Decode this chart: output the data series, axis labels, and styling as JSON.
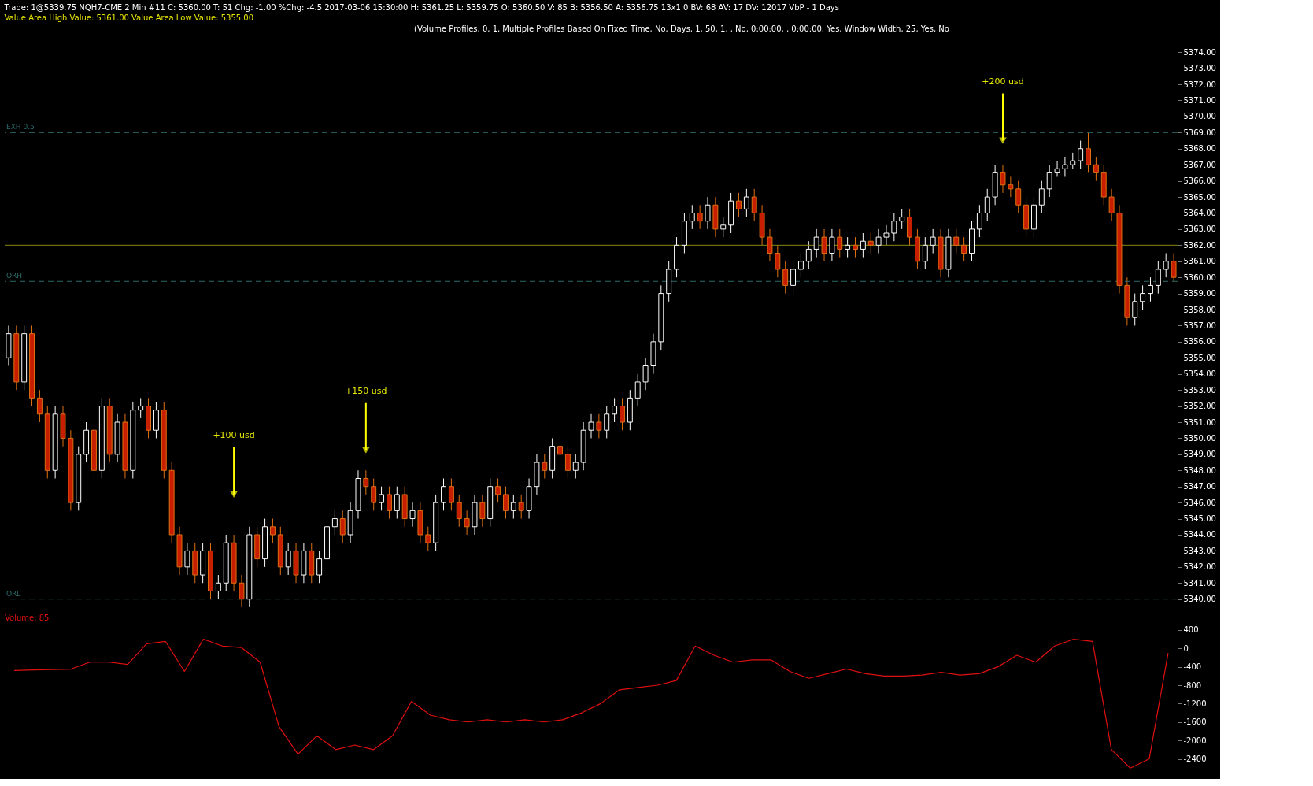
{
  "chart_data": [
    {
      "type": "candlestick",
      "title": "Trade: 1@5339.75  NQH7-CME  2 Min  #11  C: 5360.00  T: 51  Chg: -1.00  %Chg: -4.5  2017-03-06 15:30:00  H: 5361.25  L: 5359.75  O: 5360.50  V: 85  B: 5356.50  A: 5356.75  13x1 0  BV: 68  AV: 17  DV: 12017  VbP - 1 Days",
      "subtitle": "Value Area High Value: 5361.00  Value Area Low Value: 5355.00",
      "annotations": [
        "(Volume Profiles, 0, 1, Multiple Profiles Based On Fixed Time, No, Days, 1, 50, 1, , No, 0:00:00, , 0:00:00, Yes, Window Width, 25, Yes, No",
        {
          "text": "+100 usd",
          "y": 5346.5
        },
        {
          "text": "+150 usd",
          "y": 5349.25
        },
        {
          "text": "+200 usd",
          "y": 5368.5
        }
      ],
      "categories": [
        null,
        null,
        null,
        null,
        null,
        null,
        null,
        null,
        null,
        null,
        null,
        null,
        null,
        null,
        null,
        null,
        null,
        null,
        null,
        null,
        null,
        null,
        null,
        null,
        null,
        null,
        null,
        null,
        null,
        null,
        null,
        null,
        null,
        null,
        null,
        null,
        null,
        null,
        null,
        null,
        null,
        null,
        null,
        null,
        null,
        null,
        null,
        null,
        null,
        null,
        null,
        null,
        null,
        null,
        null,
        null,
        null,
        null,
        null,
        null,
        null,
        null,
        null,
        null,
        null,
        null,
        null,
        null,
        null,
        null,
        null,
        null,
        null,
        null,
        null,
        null,
        null,
        null,
        null,
        null,
        null,
        null,
        null,
        null,
        null,
        null,
        null,
        null,
        null,
        null,
        null,
        null,
        null,
        null,
        null,
        null,
        null,
        null,
        null,
        null,
        null,
        null,
        null,
        null,
        null,
        null,
        null,
        null,
        null,
        null,
        null,
        null,
        null,
        null,
        null,
        null,
        null,
        null,
        null,
        null,
        null,
        null,
        null,
        null,
        null,
        null,
        null,
        null,
        null,
        null,
        null,
        null,
        null,
        null,
        null,
        null,
        null,
        null,
        null,
        null,
        null,
        null,
        null,
        null,
        null,
        null,
        null,
        null,
        null,
        null,
        null
      ],
      "ohlc": [
        [
          5355,
          5357,
          5354.5,
          5356.5
        ],
        [
          5356.5,
          5357,
          5353,
          5353.5
        ],
        [
          5353.5,
          5357,
          5353,
          5356.5
        ],
        [
          5356.5,
          5357,
          5352,
          5352.5
        ],
        [
          5352.5,
          5353,
          5351,
          5351.5
        ],
        [
          5351.5,
          5352,
          5347.5,
          5348
        ],
        [
          5348,
          5352,
          5347.5,
          5351.5
        ],
        [
          5351.5,
          5352,
          5349.5,
          5350
        ],
        [
          5350,
          5350.5,
          5345.5,
          5346
        ],
        [
          5346,
          5349.5,
          5345.5,
          5349
        ],
        [
          5349,
          5351,
          5348.5,
          5350.5
        ],
        [
          5350.5,
          5351,
          5347.5,
          5348
        ],
        [
          5348,
          5352.5,
          5347.5,
          5352
        ],
        [
          5352,
          5352.5,
          5348.5,
          5349
        ],
        [
          5349,
          5351.5,
          5348.5,
          5351
        ],
        [
          5351,
          5351.5,
          5347.5,
          5348
        ],
        [
          5348,
          5352.25,
          5347.5,
          5351.75
        ],
        [
          5351.75,
          5352.5,
          5351.25,
          5352
        ],
        [
          5352,
          5352.5,
          5350,
          5350.5
        ],
        [
          5350.5,
          5352.25,
          5350,
          5351.75
        ],
        [
          5351.75,
          5352.25,
          5347.5,
          5348
        ],
        [
          5348,
          5348.5,
          5343.5,
          5344
        ],
        [
          5344,
          5344.5,
          5341.5,
          5342
        ],
        [
          5342,
          5343.5,
          5341.5,
          5343
        ],
        [
          5343,
          5343.5,
          5341,
          5341.5
        ],
        [
          5341.5,
          5343.5,
          5341,
          5343
        ],
        [
          5343,
          5343.5,
          5340,
          5340.5
        ],
        [
          5340.5,
          5341.5,
          5340,
          5341
        ],
        [
          5341,
          5344,
          5340.5,
          5343.5
        ],
        [
          5343.5,
          5344,
          5340.5,
          5341
        ],
        [
          5341,
          5341.5,
          5339.5,
          5340
        ],
        [
          5340,
          5344.5,
          5339.5,
          5344
        ],
        [
          5344,
          5344.5,
          5342,
          5342.5
        ],
        [
          5342.5,
          5345,
          5342,
          5344.5
        ],
        [
          5344.5,
          5345,
          5343.5,
          5344
        ],
        [
          5344,
          5344.5,
          5341.5,
          5342
        ],
        [
          5342,
          5343.5,
          5341.5,
          5343
        ],
        [
          5343,
          5343.5,
          5341,
          5341.5
        ],
        [
          5341.5,
          5343.5,
          5341,
          5343
        ],
        [
          5343,
          5343.5,
          5341,
          5341.5
        ],
        [
          5341.5,
          5343,
          5341,
          5342.5
        ],
        [
          5342.5,
          5345,
          5342,
          5344.5
        ],
        [
          5344.5,
          5345.5,
          5344,
          5345
        ],
        [
          5345,
          5345.5,
          5343.5,
          5344
        ],
        [
          5344,
          5346,
          5343.5,
          5345.5
        ],
        [
          5345.5,
          5348,
          5345,
          5347.5
        ],
        [
          5347.5,
          5348,
          5346.5,
          5347
        ],
        [
          5347,
          5347.5,
          5345.5,
          5346
        ],
        [
          5346,
          5347,
          5345.5,
          5346.5
        ],
        [
          5346.5,
          5347,
          5345,
          5345.5
        ],
        [
          5345.5,
          5347,
          5345,
          5346.5
        ],
        [
          5346.5,
          5347,
          5344.5,
          5345
        ],
        [
          5345,
          5346,
          5344.5,
          5345.5
        ],
        [
          5345.5,
          5346,
          5343.5,
          5344
        ],
        [
          5344,
          5344.5,
          5343,
          5343.5
        ],
        [
          5343.5,
          5346.5,
          5343,
          5346
        ],
        [
          5346,
          5347.5,
          5345.5,
          5347
        ],
        [
          5347,
          5347.5,
          5345.5,
          5346
        ],
        [
          5346,
          5346.5,
          5344.5,
          5345
        ],
        [
          5345,
          5345.5,
          5344,
          5344.5
        ],
        [
          5344.5,
          5346.5,
          5344,
          5346
        ],
        [
          5346,
          5346.5,
          5344.5,
          5345
        ],
        [
          5345,
          5347.5,
          5344.5,
          5347
        ],
        [
          5347,
          5347.5,
          5346,
          5346.5
        ],
        [
          5346.5,
          5347,
          5345,
          5345.5
        ],
        [
          5345.5,
          5346.5,
          5345,
          5346
        ],
        [
          5346,
          5346.5,
          5345,
          5345.5
        ],
        [
          5345.5,
          5347.5,
          5345,
          5347
        ],
        [
          5347,
          5349,
          5346.5,
          5348.5
        ],
        [
          5348.5,
          5349,
          5347.5,
          5348
        ],
        [
          5348,
          5350,
          5347.5,
          5349.5
        ],
        [
          5349.5,
          5350,
          5348.5,
          5349
        ],
        [
          5349,
          5349.5,
          5347.5,
          5348
        ],
        [
          5348,
          5349,
          5347.5,
          5348.5
        ],
        [
          5348.5,
          5351,
          5348,
          5350.5
        ],
        [
          5350.5,
          5351.5,
          5350,
          5351
        ],
        [
          5351,
          5351.5,
          5350,
          5350.5
        ],
        [
          5350.5,
          5352,
          5350,
          5351.5
        ],
        [
          5351.5,
          5352.5,
          5351,
          5352
        ],
        [
          5352,
          5352.5,
          5350.5,
          5351
        ],
        [
          5351,
          5353,
          5350.5,
          5352.5
        ],
        [
          5352.5,
          5354,
          5352,
          5353.5
        ],
        [
          5353.5,
          5355,
          5353,
          5354.5
        ],
        [
          5354.5,
          5356.5,
          5354,
          5356
        ],
        [
          5356,
          5359.5,
          5355.5,
          5359
        ],
        [
          5359,
          5361,
          5358.5,
          5360.5
        ],
        [
          5360.5,
          5362.5,
          5360,
          5362
        ],
        [
          5362,
          5364,
          5361.5,
          5363.5
        ],
        [
          5363.5,
          5364.5,
          5363,
          5364
        ],
        [
          5364,
          5364.5,
          5363,
          5363.5
        ],
        [
          5363.5,
          5365,
          5363,
          5364.5
        ],
        [
          5364.5,
          5365,
          5362.5,
          5363
        ],
        [
          5363,
          5363.75,
          5362.5,
          5363.25
        ],
        [
          5363.25,
          5365.25,
          5362.75,
          5364.75
        ],
        [
          5364.75,
          5365.25,
          5363.75,
          5364.25
        ],
        [
          5364.25,
          5365.5,
          5363.75,
          5365
        ],
        [
          5365,
          5365.5,
          5363.5,
          5364
        ],
        [
          5364,
          5364.5,
          5362,
          5362.5
        ],
        [
          5362.5,
          5363,
          5361,
          5361.5
        ],
        [
          5361.5,
          5362,
          5360,
          5360.5
        ],
        [
          5360.5,
          5361,
          5359,
          5359.5
        ],
        [
          5359.5,
          5361,
          5359,
          5360.5
        ],
        [
          5360.5,
          5361.5,
          5360,
          5361
        ],
        [
          5361,
          5362.25,
          5360.5,
          5361.75
        ],
        [
          5361.75,
          5363,
          5361.25,
          5362.5
        ],
        [
          5362.5,
          5363,
          5361,
          5361.5
        ],
        [
          5361.5,
          5363,
          5361,
          5362.5
        ],
        [
          5362.5,
          5363,
          5361.25,
          5361.75
        ],
        [
          5361.75,
          5362.5,
          5361.25,
          5362
        ],
        [
          5362,
          5362.5,
          5361.25,
          5361.75
        ],
        [
          5361.75,
          5362.75,
          5361.25,
          5362.25
        ],
        [
          5362.25,
          5362.75,
          5361.5,
          5362
        ],
        [
          5362,
          5363,
          5361.5,
          5362.5
        ],
        [
          5362.5,
          5363.25,
          5362,
          5362.75
        ],
        [
          5362.75,
          5364,
          5362.25,
          5363.5
        ],
        [
          5363.5,
          5364.25,
          5363,
          5363.75
        ],
        [
          5363.75,
          5364.25,
          5362,
          5362.5
        ],
        [
          5362.5,
          5363,
          5360.5,
          5361
        ],
        [
          5361,
          5362.5,
          5360.5,
          5362
        ],
        [
          5362,
          5363,
          5361.5,
          5362.5
        ],
        [
          5362.5,
          5363,
          5360,
          5360.5
        ],
        [
          5360.5,
          5363,
          5360,
          5362.5
        ],
        [
          5362.5,
          5363,
          5361.5,
          5362
        ],
        [
          5362,
          5362.5,
          5361,
          5361.5
        ],
        [
          5361.5,
          5363.5,
          5361,
          5363
        ],
        [
          5363,
          5364.5,
          5362.5,
          5364
        ],
        [
          5364,
          5365.5,
          5363.5,
          5365
        ],
        [
          5365,
          5367,
          5364.5,
          5366.5
        ],
        [
          5366.5,
          5367,
          5365.25,
          5365.75
        ],
        [
          5365.75,
          5366.25,
          5365,
          5365.5
        ],
        [
          5365.5,
          5366,
          5364,
          5364.5
        ],
        [
          5364.5,
          5365,
          5362.5,
          5363
        ],
        [
          5363,
          5365,
          5362.5,
          5364.5
        ],
        [
          5364.5,
          5366,
          5364,
          5365.5
        ],
        [
          5365.5,
          5367,
          5365,
          5366.5
        ],
        [
          5366.5,
          5367.25,
          5366.25,
          5366.75
        ],
        [
          5366.75,
          5367.5,
          5366.25,
          5367
        ],
        [
          5367,
          5367.75,
          5366.75,
          5367.25
        ],
        [
          5367.25,
          5368.5,
          5366.75,
          5368
        ],
        [
          5368,
          5369,
          5366.5,
          5367
        ],
        [
          5367,
          5367.5,
          5366,
          5366.5
        ],
        [
          5366.5,
          5367,
          5364.5,
          5365
        ],
        [
          5365,
          5365.5,
          5363.5,
          5364
        ],
        [
          5364,
          5364.5,
          5359,
          5359.5
        ],
        [
          5359.5,
          5360,
          5357,
          5357.5
        ],
        [
          5357.5,
          5359,
          5357,
          5358.5
        ],
        [
          5358.5,
          5359.5,
          5358,
          5359
        ],
        [
          5359,
          5360,
          5358.5,
          5359.5
        ],
        [
          5359.5,
          5361,
          5359,
          5360.5
        ],
        [
          5360.5,
          5361.5,
          5360,
          5361
        ],
        [
          5361,
          5361.5,
          5359.75,
          5360
        ]
      ],
      "ylim": [
        5339.25,
        5374.5
      ],
      "yticks": [
        {
          "value": 5340,
          "label": "5340.00"
        },
        {
          "value": 5341,
          "label": "5341.00"
        },
        {
          "value": 5342,
          "label": "5342.00"
        },
        {
          "value": 5343,
          "label": "5343.00"
        },
        {
          "value": 5344,
          "label": "5344.00"
        },
        {
          "value": 5345,
          "label": "5345.00"
        },
        {
          "value": 5346,
          "label": "5346.00"
        },
        {
          "value": 5347,
          "label": "5347.00"
        },
        {
          "value": 5348,
          "label": "5348.00"
        },
        {
          "value": 5349,
          "label": "5349.00"
        },
        {
          "value": 5350,
          "label": "5350.00"
        },
        {
          "value": 5351,
          "label": "5351.00"
        },
        {
          "value": 5352,
          "label": "5352.00"
        },
        {
          "value": 5353,
          "label": "5353.00"
        },
        {
          "value": 5354,
          "label": "5354.00"
        },
        {
          "value": 5355,
          "label": "5355.00"
        },
        {
          "value": 5356,
          "label": "5356.00"
        },
        {
          "value": 5357,
          "label": "5357.00"
        },
        {
          "value": 5358,
          "label": "5358.00"
        },
        {
          "value": 5359,
          "label": "5359.00"
        },
        {
          "value": 5360,
          "label": "5360.00"
        },
        {
          "value": 5361,
          "label": "5361.00"
        },
        {
          "value": 5362,
          "label": "5362.00"
        },
        {
          "value": 5363,
          "label": "5363.00"
        },
        {
          "value": 5364,
          "label": "5364.00"
        },
        {
          "value": 5365,
          "label": "5365.00"
        },
        {
          "value": 5366,
          "label": "5366.00"
        },
        {
          "value": 5367,
          "label": "5367.00"
        },
        {
          "value": 5368,
          "label": "5368.00"
        },
        {
          "value": 5369,
          "label": "5369.00"
        },
        {
          "value": 5370,
          "label": "5370.00"
        },
        {
          "value": 5371,
          "label": "5371.00"
        },
        {
          "value": 5372,
          "label": "5372.00"
        },
        {
          "value": 5373,
          "label": "5373.00"
        },
        {
          "value": 5374,
          "label": "5374.00"
        }
      ],
      "ref_lines": [
        {
          "axis": "y",
          "value": 5369,
          "label": "EXH 0.5",
          "color": "#2e6a6a",
          "line_style": "dashed"
        },
        {
          "axis": "y",
          "value": 5359.75,
          "label": "ORH",
          "color": "#2e6a6a",
          "line_style": "dashed"
        },
        {
          "axis": "y",
          "value": 5340,
          "label": "ORL",
          "color": "#2e6a6a",
          "line_style": "dashed"
        },
        {
          "axis": "y",
          "value": 5362,
          "color": "#8a8a10",
          "line_style": "solid"
        }
      ],
      "tick_labels": "y"
    },
    {
      "type": "line",
      "title": "Volume: 85",
      "categories": [
        null,
        null,
        null,
        null,
        null,
        null,
        null,
        null,
        null,
        null,
        null,
        null,
        null,
        null,
        null,
        null,
        null,
        null,
        null,
        null,
        null,
        null,
        null,
        null,
        null,
        null,
        null,
        null,
        null,
        null,
        null,
        null,
        null,
        null,
        null,
        null,
        null,
        null,
        null,
        null,
        null,
        null,
        null,
        null,
        null,
        null,
        null,
        null,
        null,
        null,
        null,
        null,
        null,
        null,
        null,
        null,
        null,
        null,
        null,
        null,
        null,
        null
      ],
      "series": [
        {
          "color": "#e01010",
          "values": [
            -480,
            -470,
            -460,
            -450,
            -300,
            -300,
            -350,
            100,
            150,
            -500,
            200,
            50,
            20,
            -300,
            -1700,
            -2300,
            -1900,
            -2200,
            -2100,
            -2200,
            -1900,
            -1150,
            -1450,
            -1550,
            -1600,
            -1550,
            -1600,
            -1550,
            -1600,
            -1550,
            -1400,
            -1200,
            -900,
            -850,
            -800,
            -700,
            50,
            -150,
            -300,
            -250,
            -250,
            -500,
            -650,
            -550,
            -450,
            -550,
            -600,
            -600,
            -580,
            -520,
            -580,
            -550,
            -400,
            -150,
            -300,
            50,
            200,
            150,
            -2200,
            -2600,
            -2400,
            -100
          ]
        }
      ],
      "ylim": [
        -2750,
        500
      ],
      "yticks": [
        400,
        0,
        -400,
        -800,
        -1200,
        -1600,
        -2000,
        -2400
      ],
      "tick_labels": "y"
    }
  ]
}
